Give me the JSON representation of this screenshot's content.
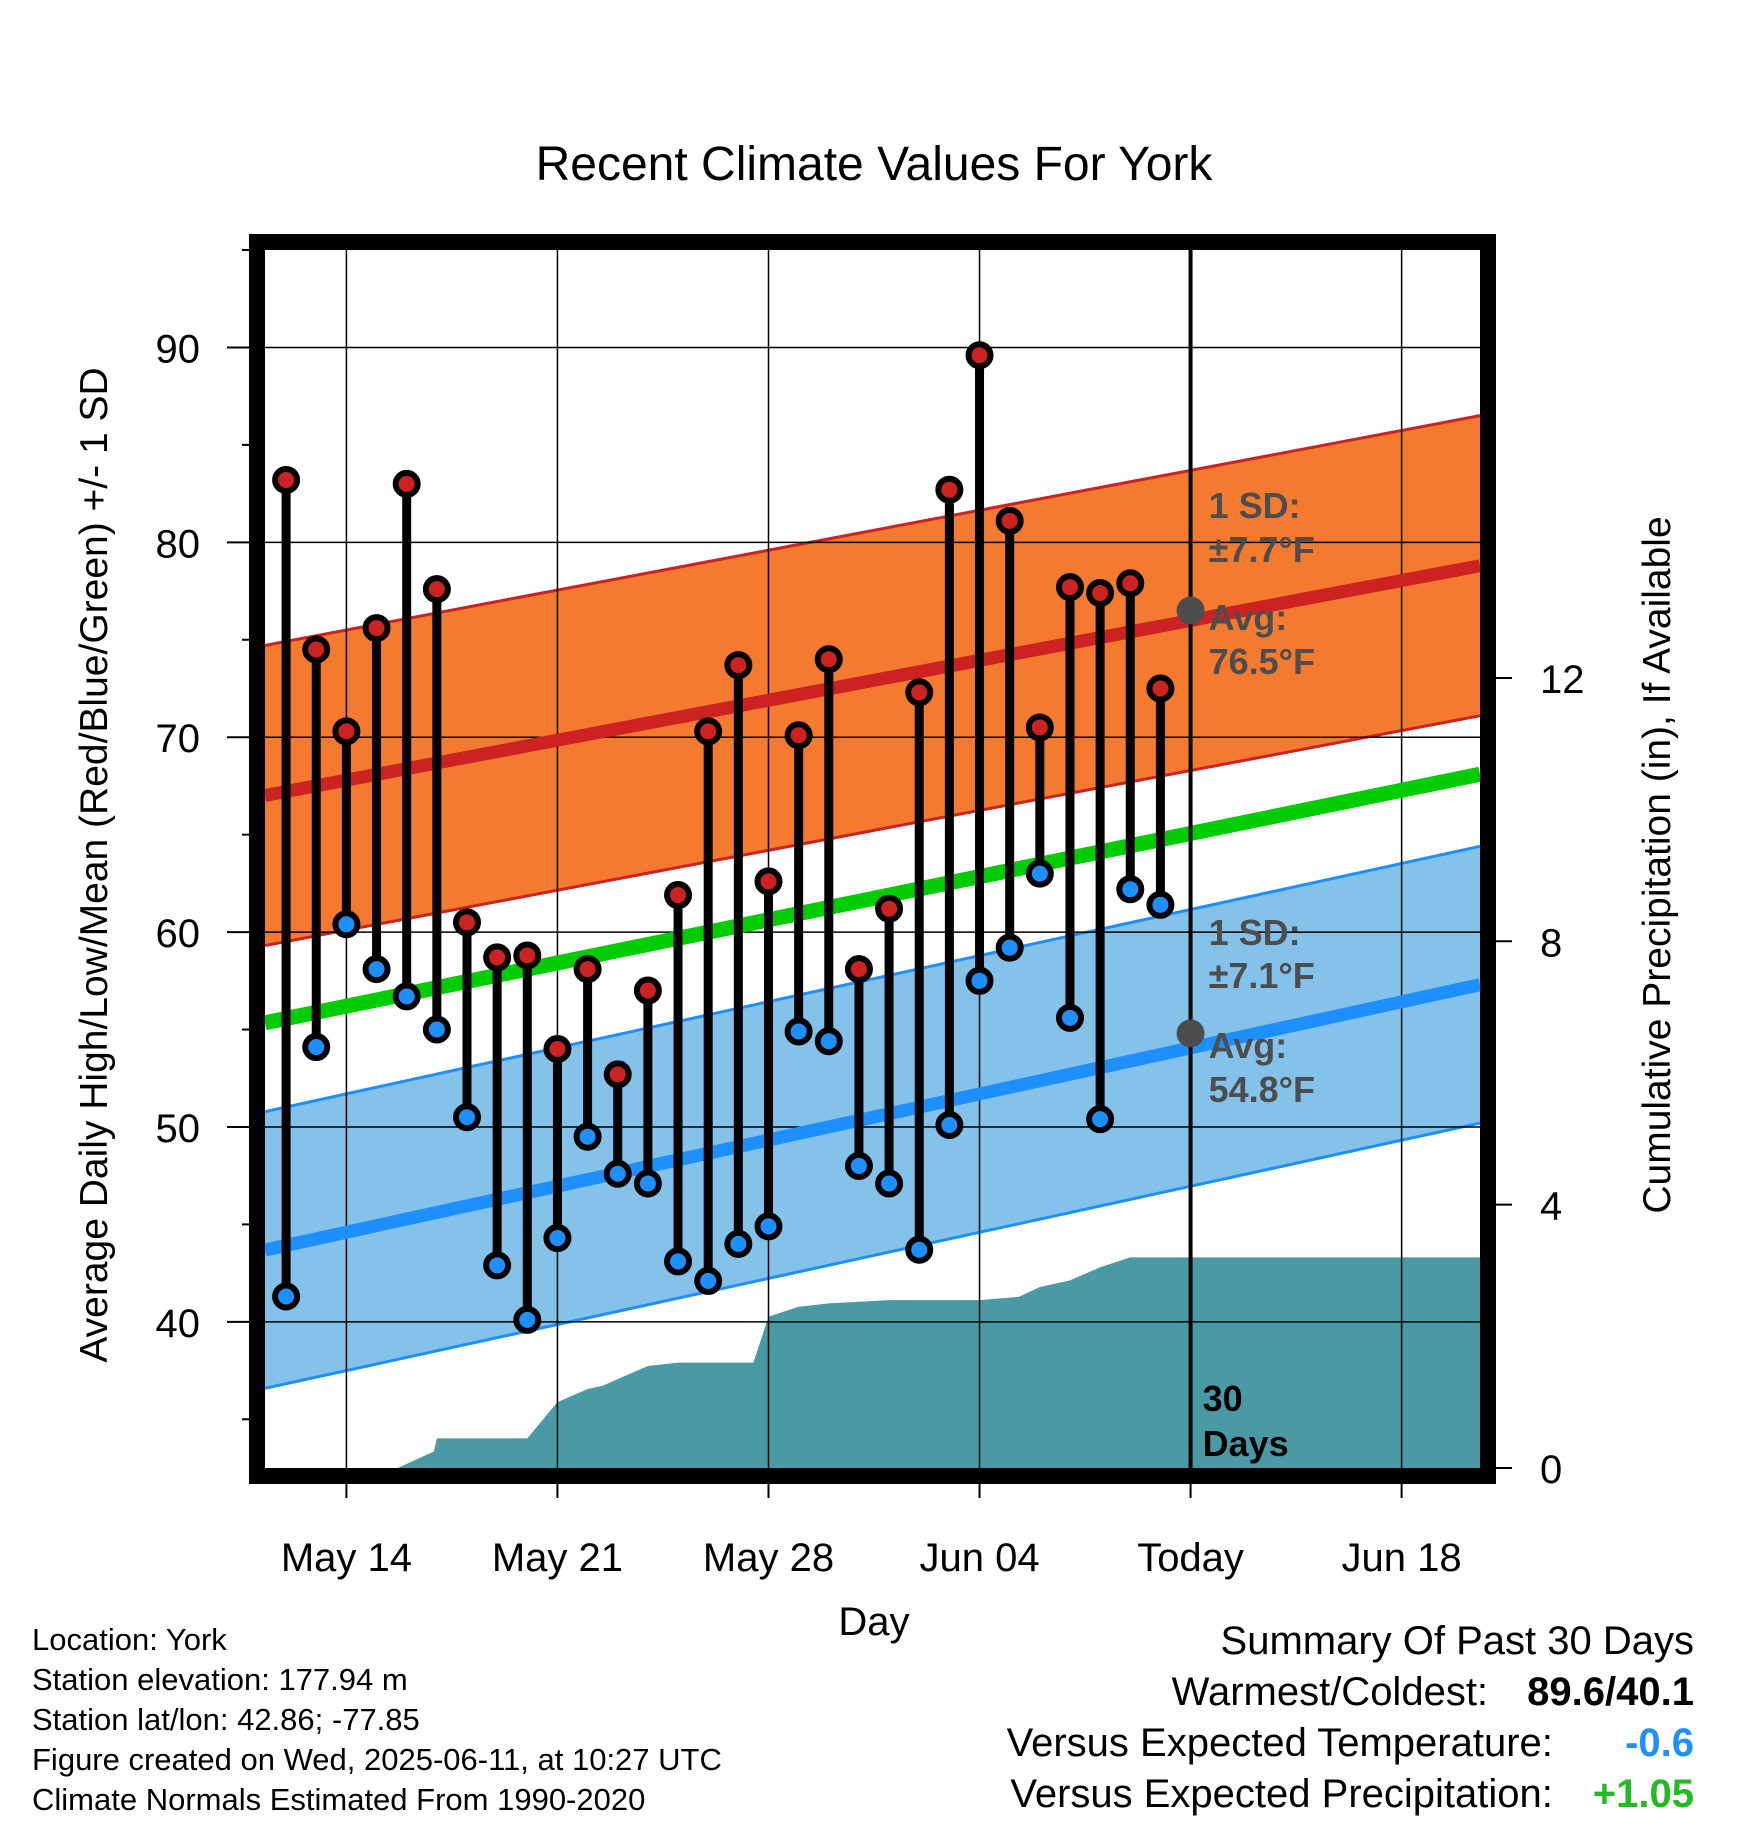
{
  "chart_data": {
    "type": "line",
    "title": "Recent Climate Values For York",
    "xlabel": "Day",
    "ylabel_left": "Average Daily High/Low/Mean (Red/Blue/Green) +/- 1 SD",
    "ylabel_right": "Cumulative Precipitation (in), If Available",
    "x_tick_labels": [
      "May 14",
      "May 21",
      "May 28",
      "Jun 04",
      "Today",
      "Jun 18"
    ],
    "x_ticks_days_since_may14": [
      0,
      7,
      14,
      21,
      28,
      35
    ],
    "xlim_days_since_may14": [
      -2.7,
      37.6
    ],
    "ylim_left": [
      32.5,
      95
    ],
    "yticks_left": [
      40,
      50,
      60,
      70,
      80,
      90
    ],
    "ylim_right": [
      0,
      18.5
    ],
    "yticks_right": [
      0,
      4,
      8,
      12
    ],
    "grid": true,
    "daily_high": [
      83.2,
      74.5,
      70.3,
      75.6,
      83.0,
      77.6,
      60.5,
      58.7,
      58.8,
      54.0,
      58.1,
      52.7,
      57.0,
      61.9,
      70.3,
      73.7,
      62.6,
      70.1,
      74.0,
      58.1,
      61.2,
      72.3,
      82.7,
      89.6,
      81.1,
      70.5,
      77.7,
      77.4,
      77.9,
      72.5
    ],
    "daily_low": [
      41.3,
      54.1,
      60.4,
      58.1,
      56.7,
      55.0,
      50.5,
      42.9,
      40.1,
      44.3,
      49.5,
      47.6,
      47.1,
      43.1,
      42.1,
      44.0,
      44.9,
      54.9,
      54.4,
      48.0,
      47.1,
      43.7,
      50.1,
      57.5,
      59.2,
      63.0,
      55.6,
      50.4,
      62.2,
      61.4
    ],
    "normal_high": {
      "start": 67.8,
      "end": 78.8,
      "today": 76.5
    },
    "normal_low": {
      "start": 44.6,
      "end": 57.3,
      "today": 54.8
    },
    "normal_mean": {
      "start": 56.2,
      "end": 68.1
    },
    "sd_high": 7.7,
    "sd_low": 7.1,
    "cumulative_precip_x_days_since_may14": [
      1.7,
      2.9,
      3.0,
      6.0,
      7.0,
      8.0,
      8.5,
      9.0,
      10.0,
      11.0,
      13.0,
      13.5,
      14.0,
      15.0,
      16.0,
      18.0,
      21.0,
      22.3,
      23.0,
      24.0,
      25.0,
      26.0,
      27.0,
      37.6
    ],
    "cumulative_precip_in": [
      0.0,
      0.25,
      0.45,
      0.45,
      1.0,
      1.2,
      1.25,
      1.35,
      1.55,
      1.6,
      1.6,
      1.6,
      2.3,
      2.45,
      2.5,
      2.55,
      2.55,
      2.6,
      2.75,
      2.85,
      3.05,
      3.2,
      3.2,
      3.2
    ],
    "annotations": {
      "high_sd_label": "1 SD:",
      "high_sd_value": "±7.7°F",
      "high_avg_label": "Avg:",
      "high_avg_value": "76.5°F",
      "low_sd_label": "1 SD:",
      "low_sd_value": "±7.1°F",
      "low_avg_label": "Avg:",
      "low_avg_value": "54.8°F",
      "window_count": "30",
      "window_unit": "Days"
    },
    "colors": {
      "high": "#cc2222",
      "high_band": "#f47a30",
      "low": "#1e8fff",
      "low_band": "#85c2ea",
      "mean": "#00cc00",
      "precip": "#4a9aa5",
      "today_dot": "#4d4d4d"
    }
  },
  "footer": {
    "location": "Location: York",
    "elevation": "Station elevation: 177.94 m",
    "latlon": "Station lat/lon: 42.86; -77.85",
    "created": "Figure created on Wed, 2025-06-11, at 10:27 UTC",
    "normals": "Climate Normals Estimated From 1990-2020"
  },
  "summary": {
    "heading": "Summary Of Past 30 Days",
    "warmest_coldest_label": "Warmest/Coldest:",
    "warmest_coldest_value": "89.6/40.1",
    "temp_label": "Versus Expected Temperature:",
    "temp_value": "-0.6",
    "temp_color": "#1e8fff",
    "precip_label": "Versus Expected Precipitation:",
    "precip_value": "+1.05",
    "precip_color": "#22bb22"
  }
}
